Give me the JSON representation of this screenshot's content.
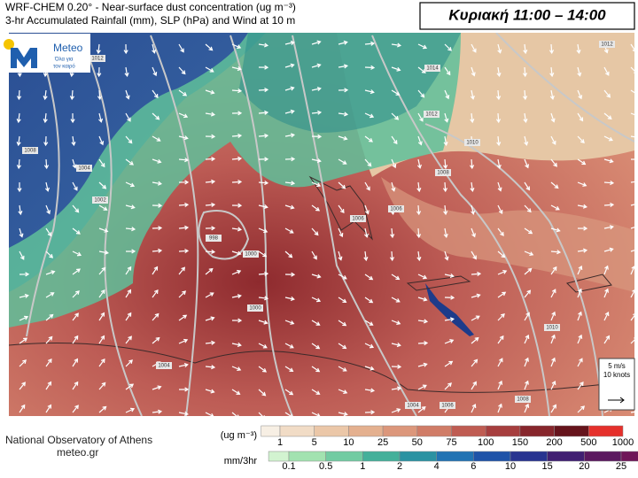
{
  "header": {
    "title": "WRF-CHEM 0.20° - Near-surface dust concentration (ug m⁻³)",
    "subtitle": "3-hr Accumulated Rainfall (mm), SLP (hPa) and Wind at 10 m",
    "time_label": "Κυριακή 11:00 – 14:00"
  },
  "logo": {
    "name": "Meteo",
    "tagline_1": "Όλα για",
    "tagline_2": "τον καιρό"
  },
  "map": {
    "isobar_labels": [
      "1012",
      "1014",
      "1012",
      "1010",
      "1008",
      "1004",
      "1002",
      "1008",
      "1006",
      "1006",
      "998",
      "1000",
      "1000",
      "1004",
      "1004",
      "1006",
      "1008",
      "1010",
      "1012"
    ],
    "wind_key": {
      "speed": "5 m/s",
      "knots": "10 knots"
    }
  },
  "footer": {
    "institution": "National Observatory of Athens",
    "website": "meteo.gr"
  },
  "dust_legend": {
    "unit": "(ug m⁻³)",
    "ticks": [
      "1",
      "5",
      "10",
      "25",
      "50",
      "75",
      "100",
      "150",
      "200",
      "500",
      "1000"
    ],
    "colors": [
      "#f7efe4",
      "#f1dcc6",
      "#ebc7a8",
      "#e4b08f",
      "#dc977b",
      "#d07c67",
      "#bf5c52",
      "#a63e3e",
      "#87262c",
      "#66141c",
      "#e5302b"
    ]
  },
  "rain_legend": {
    "unit": "mm/3hr",
    "ticks": [
      "0.1",
      "0.5",
      "1",
      "2",
      "4",
      "6",
      "10",
      "15",
      "20",
      "25"
    ],
    "colors": [
      "#d2f3d0",
      "#a2e2b0",
      "#72cba2",
      "#44b09a",
      "#2b92a2",
      "#2273b3",
      "#1f53a8",
      "#283490",
      "#412072",
      "#5b195f",
      "#6f1658"
    ]
  }
}
